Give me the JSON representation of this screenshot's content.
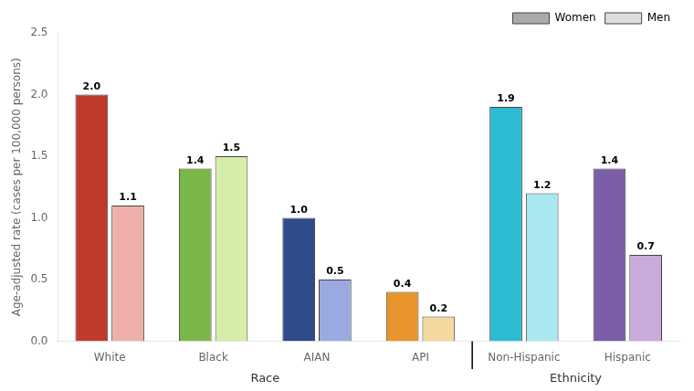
{
  "chart_data": {
    "type": "bar",
    "categories": [
      "White",
      "Black",
      "AIAN",
      "API",
      "Non-Hispanic",
      "Hispanic"
    ],
    "series": [
      {
        "name": "Women",
        "color": "#aaaaaa",
        "colors": [
          "#c0392b",
          "#7ab648",
          "#2e4b8a",
          "#e8952e",
          "#2bbcd4",
          "#7b5ea7"
        ],
        "values": [
          2.0,
          1.4,
          1.0,
          0.4,
          1.9,
          1.4
        ],
        "value_labels": [
          "2.0",
          "1.4",
          "1.0",
          "0.4",
          "1.9",
          "1.4"
        ]
      },
      {
        "name": "Men",
        "color": "#dddddd",
        "colors": [
          "#f0b0aa",
          "#d4eeaa",
          "#9aaae0",
          "#f5d8a0",
          "#aae8f0",
          "#c8aadc"
        ],
        "values": [
          1.1,
          1.5,
          0.5,
          0.2,
          1.2,
          0.7
        ],
        "value_labels": [
          "1.1",
          "1.5",
          "0.5",
          "0.2",
          "1.2",
          "0.7"
        ]
      }
    ],
    "y_label": "Age-adjusted rate (cases per 100,000 persons)",
    "ylim": [
      0,
      2.5
    ],
    "yticks": [
      {
        "value": 0.0,
        "label": "0.0"
      },
      0.5,
      {
        "value": 1.0,
        "label": "1.0"
      },
      1.5,
      {
        "value": 2.0,
        "label": "2.0"
      },
      2.5
    ],
    "annotations": [
      {
        "text": "Race",
        "span": [
          "White",
          "API"
        ]
      },
      {
        "text": "Ethnicity",
        "span": [
          "Non-Hispanic",
          "Hispanic"
        ]
      }
    ],
    "data_labels": true,
    "legend": "upper right",
    "grid": false
  }
}
